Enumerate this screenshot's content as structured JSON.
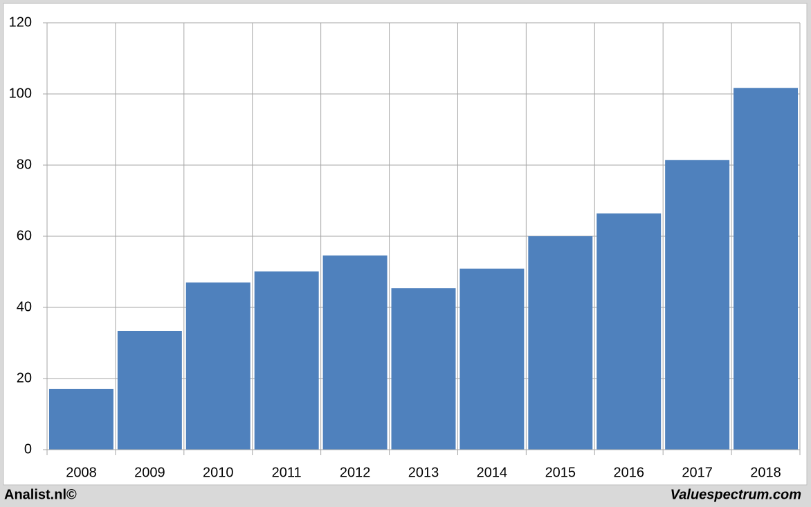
{
  "chart_data": {
    "type": "bar",
    "categories": [
      "2008",
      "2009",
      "2010",
      "2011",
      "2012",
      "2013",
      "2014",
      "2015",
      "2016",
      "2017",
      "2018"
    ],
    "values": [
      17.1,
      33.4,
      47.0,
      50.1,
      54.6,
      45.4,
      50.9,
      60.0,
      66.4,
      81.4,
      101.7
    ],
    "color": "#4f81bd",
    "ylim": [
      0,
      120
    ],
    "yticks": [
      0,
      20,
      40,
      60,
      80,
      100,
      120
    ],
    "grid": true
  },
  "footer": {
    "left": "Analist.nl©",
    "right": "Valuespectrum.com"
  }
}
